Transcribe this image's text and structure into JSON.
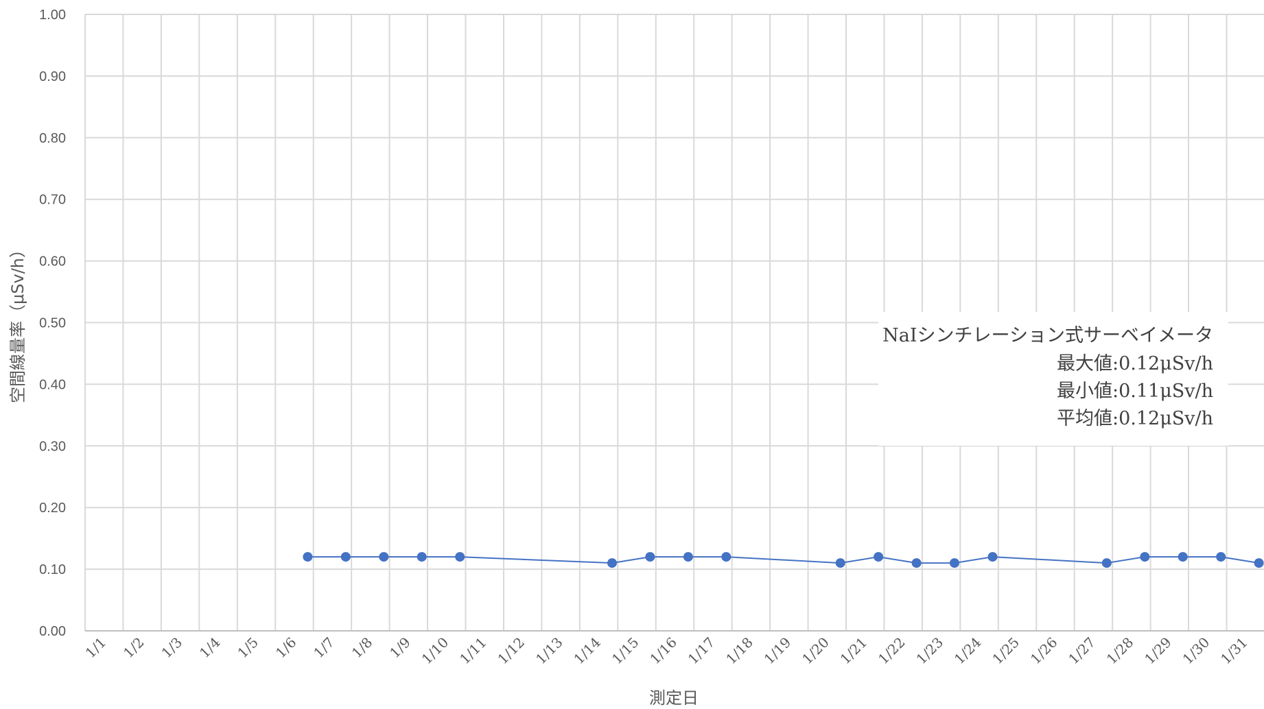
{
  "chart_data": {
    "type": "line",
    "ylabel": "空間線量率（μSv/h）",
    "xlabel": "測定日",
    "ylim": [
      0.0,
      1.0
    ],
    "y_ticks": [
      "0.00",
      "0.10",
      "0.20",
      "0.30",
      "0.40",
      "0.50",
      "0.60",
      "0.70",
      "0.80",
      "0.90",
      "1.00"
    ],
    "categories": [
      "1/1",
      "1/2",
      "1/3",
      "1/4",
      "1/5",
      "1/6",
      "1/7",
      "1/8",
      "1/9",
      "1/10",
      "1/11",
      "1/12",
      "1/13",
      "1/14",
      "1/15",
      "1/16",
      "1/17",
      "1/18",
      "1/19",
      "1/20",
      "1/21",
      "1/22",
      "1/23",
      "1/24",
      "1/25",
      "1/26",
      "1/27",
      "1/28",
      "1/29",
      "1/30",
      "1/31"
    ],
    "grid": true,
    "legend": "none",
    "series": [
      {
        "color": "#4472c4",
        "points": [
          {
            "x": "1/6",
            "y": 0.12
          },
          {
            "x": "1/7",
            "y": 0.12
          },
          {
            "x": "1/8",
            "y": 0.12
          },
          {
            "x": "1/9",
            "y": 0.12
          },
          {
            "x": "1/10",
            "y": 0.12
          },
          {
            "x": "1/14",
            "y": 0.11
          },
          {
            "x": "1/15",
            "y": 0.12
          },
          {
            "x": "1/16",
            "y": 0.12
          },
          {
            "x": "1/17",
            "y": 0.12
          },
          {
            "x": "1/20",
            "y": 0.11
          },
          {
            "x": "1/21",
            "y": 0.12
          },
          {
            "x": "1/22",
            "y": 0.11
          },
          {
            "x": "1/23",
            "y": 0.11
          },
          {
            "x": "1/24",
            "y": 0.12
          },
          {
            "x": "1/27",
            "y": 0.11
          },
          {
            "x": "1/28",
            "y": 0.12
          },
          {
            "x": "1/29",
            "y": 0.12
          },
          {
            "x": "1/30",
            "y": 0.12
          },
          {
            "x": "1/31",
            "y": 0.11
          }
        ]
      }
    ],
    "annotation": {
      "instrument": "NaIシンチレーション式サーベイメータ",
      "max": "最大値:0.12μSv/h",
      "min": "最小値:0.11μSv/h",
      "avg": "平均値:0.12μSv/h"
    }
  }
}
